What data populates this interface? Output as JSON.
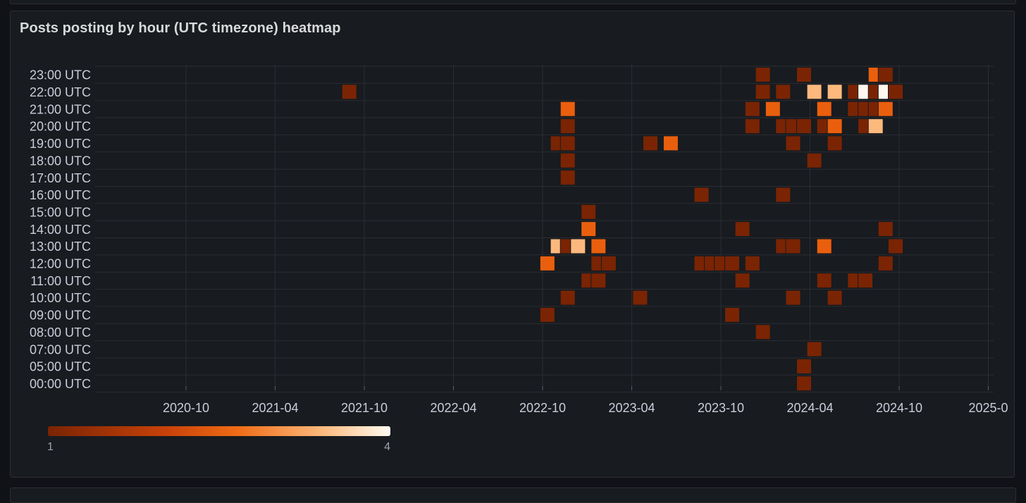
{
  "panel": {
    "title": "Posts posting by hour (UTC timezone) heatmap"
  },
  "chart_data": {
    "type": "heatmap",
    "title": "Posts posting by hour (UTC timezone) heatmap",
    "xlabel": "",
    "ylabel": "",
    "x_ticks": [
      "2020-10",
      "2021-04",
      "2021-10",
      "2022-04",
      "2022-10",
      "2023-04",
      "2023-10",
      "2024-04",
      "2024-10",
      "2025-0"
    ],
    "y_categories": [
      "00:00 UTC",
      "05:00 UTC",
      "07:00 UTC",
      "08:00 UTC",
      "09:00 UTC",
      "10:00 UTC",
      "11:00 UTC",
      "12:00 UTC",
      "13:00 UTC",
      "14:00 UTC",
      "15:00 UTC",
      "16:00 UTC",
      "17:00 UTC",
      "18:00 UTC",
      "19:00 UTC",
      "20:00 UTC",
      "21:00 UTC",
      "22:00 UTC",
      "23:00 UTC"
    ],
    "x_range": [
      "2020-06",
      "2025-02"
    ],
    "grid": true,
    "color_scale": {
      "min": 1,
      "max": 4,
      "min_label": "1",
      "max_label": "4",
      "colors": [
        "#7a2403",
        "#c9420a",
        "#ef6b15",
        "#fcb97c",
        "#fffaf2"
      ]
    },
    "cells": [
      {
        "week": "2021-08-16",
        "hour": "22:00 UTC",
        "value": 1
      },
      {
        "week": "2022-09-26",
        "hour": "12:00 UTC",
        "value": 2
      },
      {
        "week": "2022-09-26",
        "hour": "09:00 UTC",
        "value": 1
      },
      {
        "week": "2022-10-17",
        "hour": "13:00 UTC",
        "value": 3
      },
      {
        "week": "2022-10-17",
        "hour": "19:00 UTC",
        "value": 1
      },
      {
        "week": "2022-11-07",
        "hour": "21:00 UTC",
        "value": 2
      },
      {
        "week": "2022-11-07",
        "hour": "20:00 UTC",
        "value": 1
      },
      {
        "week": "2022-11-07",
        "hour": "19:00 UTC",
        "value": 1
      },
      {
        "week": "2022-11-07",
        "hour": "18:00 UTC",
        "value": 1
      },
      {
        "week": "2022-11-07",
        "hour": "17:00 UTC",
        "value": 1
      },
      {
        "week": "2022-11-07",
        "hour": "13:00 UTC",
        "value": 1
      },
      {
        "week": "2022-11-07",
        "hour": "10:00 UTC",
        "value": 1
      },
      {
        "week": "2022-11-28",
        "hour": "13:00 UTC",
        "value": 3
      },
      {
        "week": "2022-12-19",
        "hour": "15:00 UTC",
        "value": 1
      },
      {
        "week": "2022-12-19",
        "hour": "14:00 UTC",
        "value": 2
      },
      {
        "week": "2022-12-19",
        "hour": "11:00 UTC",
        "value": 1
      },
      {
        "week": "2023-01-09",
        "hour": "13:00 UTC",
        "value": 2
      },
      {
        "week": "2023-01-09",
        "hour": "12:00 UTC",
        "value": 1
      },
      {
        "week": "2023-01-09",
        "hour": "11:00 UTC",
        "value": 1
      },
      {
        "week": "2023-01-30",
        "hour": "12:00 UTC",
        "value": 1
      },
      {
        "week": "2023-04-03",
        "hour": "10:00 UTC",
        "value": 1
      },
      {
        "week": "2023-04-24",
        "hour": "19:00 UTC",
        "value": 1
      },
      {
        "week": "2023-06-05",
        "hour": "19:00 UTC",
        "value": 2
      },
      {
        "week": "2023-08-07",
        "hour": "16:00 UTC",
        "value": 1
      },
      {
        "week": "2023-08-07",
        "hour": "12:00 UTC",
        "value": 1
      },
      {
        "week": "2023-08-28",
        "hour": "12:00 UTC",
        "value": 1
      },
      {
        "week": "2023-09-18",
        "hour": "12:00 UTC",
        "value": 1
      },
      {
        "week": "2023-10-09",
        "hour": "12:00 UTC",
        "value": 1
      },
      {
        "week": "2023-10-09",
        "hour": "09:00 UTC",
        "value": 1
      },
      {
        "week": "2023-10-30",
        "hour": "14:00 UTC",
        "value": 1
      },
      {
        "week": "2023-10-30",
        "hour": "11:00 UTC",
        "value": 1
      },
      {
        "week": "2023-11-20",
        "hour": "21:00 UTC",
        "value": 1
      },
      {
        "week": "2023-11-20",
        "hour": "20:00 UTC",
        "value": 1
      },
      {
        "week": "2023-11-20",
        "hour": "12:00 UTC",
        "value": 1
      },
      {
        "week": "2023-12-11",
        "hour": "23:00 UTC",
        "value": 1
      },
      {
        "week": "2023-12-11",
        "hour": "22:00 UTC",
        "value": 1
      },
      {
        "week": "2023-12-11",
        "hour": "08:00 UTC",
        "value": 1
      },
      {
        "week": "2024-01-01",
        "hour": "21:00 UTC",
        "value": 2
      },
      {
        "week": "2024-01-22",
        "hour": "22:00 UTC",
        "value": 1
      },
      {
        "week": "2024-01-22",
        "hour": "20:00 UTC",
        "value": 1
      },
      {
        "week": "2024-01-22",
        "hour": "16:00 UTC",
        "value": 1
      },
      {
        "week": "2024-01-22",
        "hour": "13:00 UTC",
        "value": 1
      },
      {
        "week": "2024-02-12",
        "hour": "20:00 UTC",
        "value": 1
      },
      {
        "week": "2024-02-12",
        "hour": "19:00 UTC",
        "value": 1
      },
      {
        "week": "2024-02-12",
        "hour": "13:00 UTC",
        "value": 1
      },
      {
        "week": "2024-02-12",
        "hour": "10:00 UTC",
        "value": 1
      },
      {
        "week": "2024-03-04",
        "hour": "23:00 UTC",
        "value": 1
      },
      {
        "week": "2024-03-04",
        "hour": "20:00 UTC",
        "value": 1
      },
      {
        "week": "2024-03-04",
        "hour": "05:00 UTC",
        "value": 1
      },
      {
        "week": "2024-03-04",
        "hour": "00:00 UTC",
        "value": 1
      },
      {
        "week": "2024-03-25",
        "hour": "22:00 UTC",
        "value": 3
      },
      {
        "week": "2024-03-25",
        "hour": "18:00 UTC",
        "value": 1
      },
      {
        "week": "2024-03-25",
        "hour": "07:00 UTC",
        "value": 1
      },
      {
        "week": "2024-04-15",
        "hour": "21:00 UTC",
        "value": 2
      },
      {
        "week": "2024-04-15",
        "hour": "20:00 UTC",
        "value": 1
      },
      {
        "week": "2024-04-15",
        "hour": "13:00 UTC",
        "value": 2
      },
      {
        "week": "2024-04-15",
        "hour": "11:00 UTC",
        "value": 1
      },
      {
        "week": "2024-05-06",
        "hour": "22:00 UTC",
        "value": 3
      },
      {
        "week": "2024-05-06",
        "hour": "20:00 UTC",
        "value": 2
      },
      {
        "week": "2024-05-06",
        "hour": "19:00 UTC",
        "value": 1
      },
      {
        "week": "2024-05-06",
        "hour": "10:00 UTC",
        "value": 1
      },
      {
        "week": "2024-06-17",
        "hour": "22:00 UTC",
        "value": 1
      },
      {
        "week": "2024-06-17",
        "hour": "21:00 UTC",
        "value": 1
      },
      {
        "week": "2024-06-17",
        "hour": "11:00 UTC",
        "value": 1
      },
      {
        "week": "2024-07-08",
        "hour": "22:00 UTC",
        "value": 4
      },
      {
        "week": "2024-07-08",
        "hour": "21:00 UTC",
        "value": 1
      },
      {
        "week": "2024-07-08",
        "hour": "20:00 UTC",
        "value": 1
      },
      {
        "week": "2024-07-08",
        "hour": "11:00 UTC",
        "value": 1
      },
      {
        "week": "2024-07-29",
        "hour": "23:00 UTC",
        "value": 2
      },
      {
        "week": "2024-07-29",
        "hour": "22:00 UTC",
        "value": 1
      },
      {
        "week": "2024-07-29",
        "hour": "21:00 UTC",
        "value": 1
      },
      {
        "week": "2024-07-29",
        "hour": "20:00 UTC",
        "value": 3
      },
      {
        "week": "2024-08-19",
        "hour": "23:00 UTC",
        "value": 1
      },
      {
        "week": "2024-08-19",
        "hour": "22:00 UTC",
        "value": 4
      },
      {
        "week": "2024-08-19",
        "hour": "21:00 UTC",
        "value": 2
      },
      {
        "week": "2024-08-19",
        "hour": "14:00 UTC",
        "value": 1
      },
      {
        "week": "2024-08-19",
        "hour": "12:00 UTC",
        "value": 1
      },
      {
        "week": "2024-09-09",
        "hour": "22:00 UTC",
        "value": 1
      },
      {
        "week": "2024-09-09",
        "hour": "13:00 UTC",
        "value": 1
      }
    ]
  }
}
